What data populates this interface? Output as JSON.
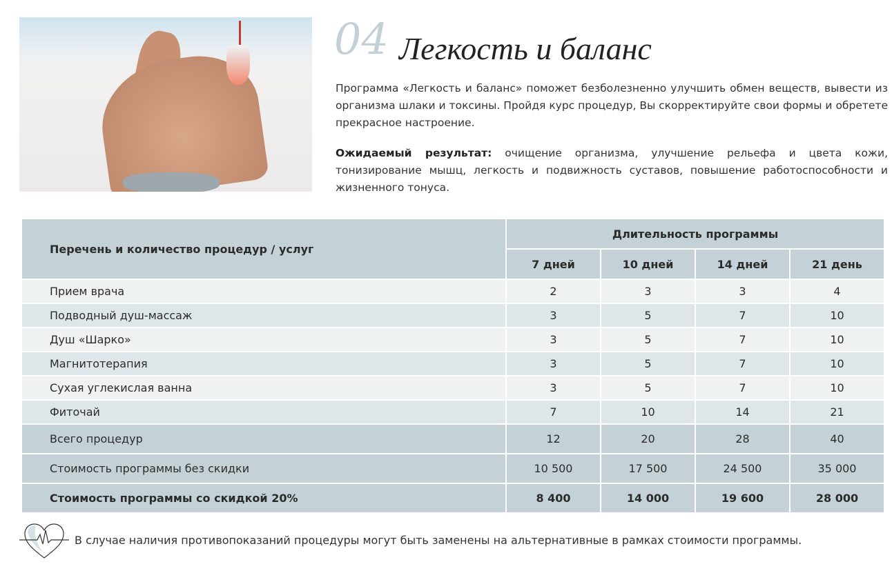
{
  "header": {
    "number": "04",
    "title": "Легкость и баланс"
  },
  "intro": "Программа «Легкость и баланс» поможет безболезненно улучшить обмен веществ, вывести из организма шлаки и токсины. Пройдя курс процедур, Вы скорректируйте свои формы и обретете прекрасное настроение.",
  "result": {
    "label": "Ожидаемый результат:",
    "text": " очищение организма, улучшение рельефа и цвета кожи, тонизирование мышц, легкость и подвижность суставов, повышение работоспособности и жизненного тонуса."
  },
  "table": {
    "col_header": "Перечень и количество процедур / услуг",
    "group_header": "Длительность программы",
    "durations": [
      "7 дней",
      "10 дней",
      "14 дней",
      "21 день"
    ],
    "rows": [
      {
        "name": "Прием врача",
        "values": [
          "2",
          "3",
          "3",
          "4"
        ]
      },
      {
        "name": "Подводный душ-массаж",
        "values": [
          "3",
          "5",
          "7",
          "10"
        ]
      },
      {
        "name": "Душ «Шарко»",
        "values": [
          "3",
          "5",
          "7",
          "10"
        ]
      },
      {
        "name": "Магнитотерапия",
        "values": [
          "3",
          "5",
          "7",
          "10"
        ]
      },
      {
        "name": "Сухая углекислая ванна",
        "values": [
          "3",
          "5",
          "7",
          "10"
        ]
      },
      {
        "name": "Фиточай",
        "values": [
          "7",
          "10",
          "14",
          "21"
        ]
      }
    ],
    "totals": [
      {
        "name": "Всего процедур",
        "values": [
          "12",
          "20",
          "28",
          "40"
        ]
      },
      {
        "name": "Стоимость программы без скидки",
        "values": [
          "10 500",
          "17 500",
          "24 500",
          "35 000"
        ]
      },
      {
        "name": "Стоимость программы со скидкой 20%",
        "values": [
          "8 400",
          "14 000",
          "19 600",
          "28 000"
        ]
      }
    ]
  },
  "note": "В случае наличия противопоказаний процедуры могут быть заменены на альтернативные в рамках стоимости программы.",
  "colors": {
    "accent": "#c4d2d7",
    "row_light": "#eef2f3",
    "row_dark": "#dfe6e9"
  }
}
